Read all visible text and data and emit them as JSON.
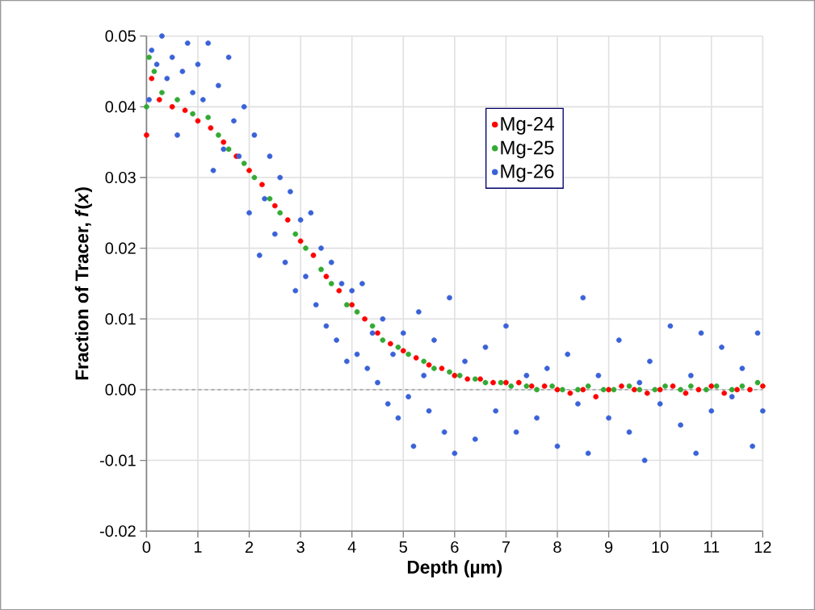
{
  "chart_data": {
    "type": "scatter",
    "xlabel": "Depth (µm)",
    "ylabel": "Fraction  of Tracer, *f*(*x*)",
    "xlim": [
      0,
      12
    ],
    "xticks": [
      0,
      1,
      2,
      3,
      4,
      5,
      6,
      7,
      8,
      9,
      10,
      11,
      12
    ],
    "ylim": [
      -0.02,
      0.05
    ],
    "yticks": [
      -0.02,
      -0.01,
      {
        "value": 0,
        "label": "0.00"
      },
      0.01,
      0.02,
      0.03,
      0.04,
      0.05
    ],
    "grid": true,
    "legend": "top right",
    "marker": "circle",
    "ref_lines": [
      {
        "axis": "y",
        "value": 0,
        "color": "#808080",
        "line_style": "dashed"
      }
    ],
    "series": [
      {
        "name": "Mg-24",
        "color": "#ff0000",
        "x": [
          0.0,
          0.1,
          0.25,
          0.5,
          0.75,
          1.0,
          1.25,
          1.5,
          1.75,
          2.0,
          2.25,
          2.5,
          2.75,
          3.0,
          3.25,
          3.5,
          3.75,
          4.0,
          4.25,
          4.5,
          4.75,
          5.0,
          5.25,
          5.5,
          5.75,
          6.0,
          6.25,
          6.5,
          6.75,
          7.0,
          7.25,
          7.5,
          7.75,
          8.0,
          8.25,
          8.5,
          8.75,
          9.0,
          9.25,
          9.5,
          9.75,
          10.0,
          10.25,
          10.5,
          10.75,
          11.0,
          11.25,
          11.5,
          11.75,
          12.0
        ],
        "values": [
          0.036,
          0.044,
          0.041,
          0.04,
          0.0395,
          0.038,
          0.037,
          0.035,
          0.033,
          0.031,
          0.029,
          0.026,
          0.024,
          0.021,
          0.019,
          0.016,
          0.014,
          0.012,
          0.01,
          0.008,
          0.0065,
          0.0055,
          0.0045,
          0.0035,
          0.003,
          0.002,
          0.0015,
          0.0015,
          0.001,
          0.001,
          0.001,
          0.0005,
          0.0005,
          0.0,
          -0.0005,
          0.0,
          -0.001,
          0.0,
          0.0005,
          0.0,
          -0.0005,
          0.0,
          0.0005,
          -0.0005,
          0.0,
          0.0005,
          -0.0005,
          0.0,
          0.0,
          0.0005
        ]
      },
      {
        "name": "Mg-25",
        "color": "#33aa33",
        "x": [
          0.0,
          0.05,
          0.15,
          0.3,
          0.6,
          0.9,
          1.2,
          1.4,
          1.6,
          1.9,
          2.1,
          2.4,
          2.6,
          2.9,
          3.1,
          3.4,
          3.6,
          3.9,
          4.1,
          4.4,
          4.6,
          4.9,
          5.1,
          5.4,
          5.6,
          5.9,
          6.1,
          6.4,
          6.6,
          6.9,
          7.1,
          7.4,
          7.6,
          7.9,
          8.1,
          8.4,
          8.6,
          8.9,
          9.1,
          9.4,
          9.6,
          9.9,
          10.1,
          10.4,
          10.6,
          10.9,
          11.1,
          11.4,
          11.6,
          11.9
        ],
        "values": [
          0.04,
          0.047,
          0.045,
          0.042,
          0.041,
          0.039,
          0.0385,
          0.036,
          0.034,
          0.032,
          0.03,
          0.027,
          0.025,
          0.022,
          0.02,
          0.017,
          0.015,
          0.012,
          0.011,
          0.009,
          0.007,
          0.006,
          0.005,
          0.004,
          0.003,
          0.0025,
          0.002,
          0.0015,
          0.001,
          0.001,
          0.0005,
          0.0005,
          0.0,
          0.0005,
          0.0,
          0.0,
          0.0005,
          0.0,
          0.0,
          0.0005,
          0.0,
          0.0,
          0.0005,
          0.0,
          0.0005,
          0.0,
          0.0005,
          0.0,
          0.0005,
          0.001
        ]
      },
      {
        "name": "Mg-26",
        "color": "#3a62d8",
        "x": [
          0.05,
          0.1,
          0.2,
          0.3,
          0.4,
          0.5,
          0.6,
          0.7,
          0.8,
          0.9,
          1.0,
          1.1,
          1.2,
          1.3,
          1.4,
          1.5,
          1.6,
          1.7,
          1.8,
          1.9,
          2.0,
          2.1,
          2.2,
          2.3,
          2.4,
          2.5,
          2.6,
          2.7,
          2.8,
          2.9,
          3.0,
          3.1,
          3.2,
          3.3,
          3.4,
          3.5,
          3.6,
          3.7,
          3.8,
          3.9,
          4.0,
          4.1,
          4.2,
          4.3,
          4.4,
          4.5,
          4.6,
          4.7,
          4.8,
          4.9,
          5.0,
          5.1,
          5.2,
          5.3,
          5.4,
          5.5,
          5.6,
          5.8,
          5.9,
          6.0,
          6.2,
          6.4,
          6.6,
          6.8,
          7.0,
          7.2,
          7.4,
          7.6,
          7.8,
          8.0,
          8.2,
          8.4,
          8.5,
          8.6,
          8.8,
          9.0,
          9.2,
          9.4,
          9.6,
          9.7,
          9.8,
          10.0,
          10.2,
          10.4,
          10.6,
          10.7,
          10.8,
          11.0,
          11.2,
          11.4,
          11.6,
          11.8,
          11.9,
          12.0
        ],
        "values": [
          0.041,
          0.048,
          0.046,
          0.05,
          0.044,
          0.047,
          0.036,
          0.045,
          0.049,
          0.042,
          0.046,
          0.041,
          0.049,
          0.031,
          0.043,
          0.034,
          0.047,
          0.038,
          0.033,
          0.04,
          0.025,
          0.036,
          0.019,
          0.027,
          0.033,
          0.022,
          0.03,
          0.018,
          0.028,
          0.014,
          0.024,
          0.016,
          0.025,
          0.012,
          0.02,
          0.009,
          0.018,
          0.007,
          0.015,
          0.004,
          0.014,
          0.005,
          0.015,
          0.003,
          0.008,
          0.001,
          0.01,
          -0.002,
          0.005,
          -0.004,
          0.008,
          -0.001,
          -0.008,
          0.011,
          0.002,
          -0.003,
          0.007,
          -0.006,
          0.013,
          -0.009,
          0.004,
          -0.007,
          0.006,
          -0.003,
          0.009,
          -0.006,
          0.002,
          -0.004,
          0.003,
          -0.008,
          0.005,
          -0.002,
          0.013,
          -0.009,
          0.002,
          -0.004,
          0.007,
          -0.006,
          0.001,
          -0.01,
          0.004,
          -0.002,
          0.009,
          -0.005,
          0.002,
          -0.009,
          0.008,
          -0.003,
          0.006,
          -0.001,
          0.003,
          -0.008,
          0.008,
          -0.003
        ]
      }
    ]
  }
}
